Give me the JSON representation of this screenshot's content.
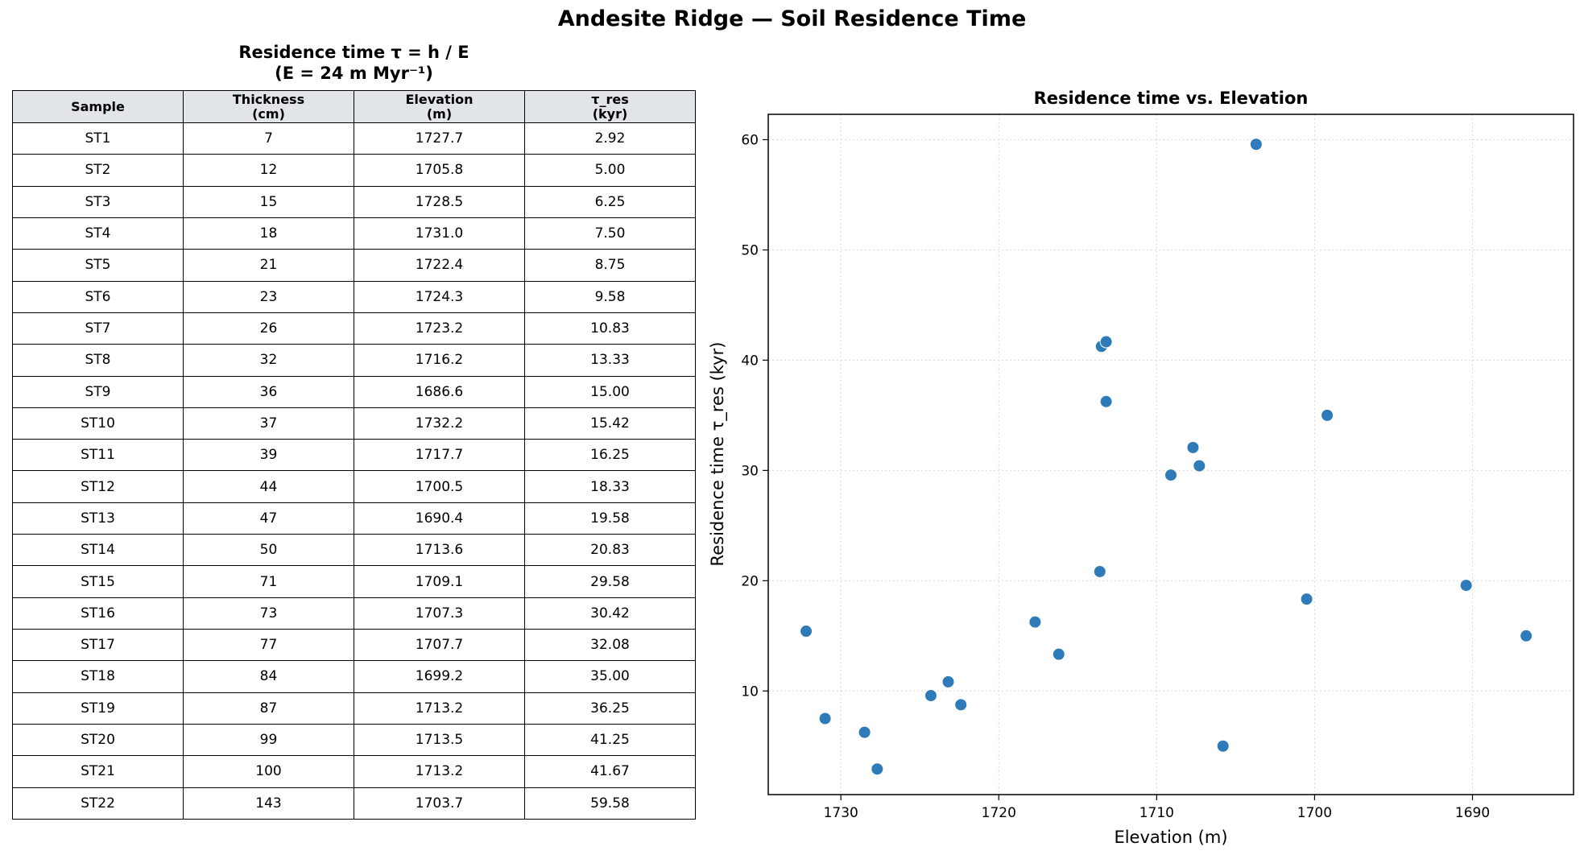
{
  "page": {
    "suptitle": "Andesite Ridge — Soil Residence Time"
  },
  "table": {
    "title_line1": "Residence time  τ = h / E",
    "title_line2": "(E = 24 m Myr⁻¹)",
    "headers": [
      {
        "line1": "Sample",
        "line2": ""
      },
      {
        "line1": "Thickness",
        "line2": "(cm)"
      },
      {
        "line1": "Elevation",
        "line2": "(m)"
      },
      {
        "line1": "τ_res",
        "line2": "(kyr)"
      }
    ],
    "rows": [
      [
        "ST1",
        "7",
        "1727.7",
        "2.92"
      ],
      [
        "ST2",
        "12",
        "1705.8",
        "5.00"
      ],
      [
        "ST3",
        "15",
        "1728.5",
        "6.25"
      ],
      [
        "ST4",
        "18",
        "1731.0",
        "7.50"
      ],
      [
        "ST5",
        "21",
        "1722.4",
        "8.75"
      ],
      [
        "ST6",
        "23",
        "1724.3",
        "9.58"
      ],
      [
        "ST7",
        "26",
        "1723.2",
        "10.83"
      ],
      [
        "ST8",
        "32",
        "1716.2",
        "13.33"
      ],
      [
        "ST9",
        "36",
        "1686.6",
        "15.00"
      ],
      [
        "ST10",
        "37",
        "1732.2",
        "15.42"
      ],
      [
        "ST11",
        "39",
        "1717.7",
        "16.25"
      ],
      [
        "ST12",
        "44",
        "1700.5",
        "18.33"
      ],
      [
        "ST13",
        "47",
        "1690.4",
        "19.58"
      ],
      [
        "ST14",
        "50",
        "1713.6",
        "20.83"
      ],
      [
        "ST15",
        "71",
        "1709.1",
        "29.58"
      ],
      [
        "ST16",
        "73",
        "1707.3",
        "30.42"
      ],
      [
        "ST17",
        "77",
        "1707.7",
        "32.08"
      ],
      [
        "ST18",
        "84",
        "1699.2",
        "35.00"
      ],
      [
        "ST19",
        "87",
        "1713.2",
        "36.25"
      ],
      [
        "ST20",
        "99",
        "1713.5",
        "41.25"
      ],
      [
        "ST21",
        "100",
        "1713.2",
        "41.67"
      ],
      [
        "ST22",
        "143",
        "1703.7",
        "59.58"
      ]
    ]
  },
  "chart_data": {
    "type": "scatter",
    "title": "Residence time vs. Elevation",
    "xlabel": "Elevation (m)",
    "ylabel": "Residence time τ_res (kyr)",
    "x_inverted": true,
    "xlim": [
      1734.6,
      1683.6
    ],
    "ylim": [
      0.6,
      62.3
    ],
    "xticks": [
      1730,
      1720,
      1710,
      1700,
      1690
    ],
    "yticks": [
      10,
      20,
      30,
      40,
      50,
      60
    ],
    "grid": true,
    "marker_color": "#2f7ab8",
    "points": [
      {
        "x": 1727.7,
        "y": 2.92
      },
      {
        "x": 1705.8,
        "y": 5.0
      },
      {
        "x": 1728.5,
        "y": 6.25
      },
      {
        "x": 1731.0,
        "y": 7.5
      },
      {
        "x": 1722.4,
        "y": 8.75
      },
      {
        "x": 1724.3,
        "y": 9.58
      },
      {
        "x": 1723.2,
        "y": 10.83
      },
      {
        "x": 1716.2,
        "y": 13.33
      },
      {
        "x": 1686.6,
        "y": 15.0
      },
      {
        "x": 1732.2,
        "y": 15.42
      },
      {
        "x": 1717.7,
        "y": 16.25
      },
      {
        "x": 1700.5,
        "y": 18.33
      },
      {
        "x": 1690.4,
        "y": 19.58
      },
      {
        "x": 1713.6,
        "y": 20.83
      },
      {
        "x": 1709.1,
        "y": 29.58
      },
      {
        "x": 1707.3,
        "y": 30.42
      },
      {
        "x": 1707.7,
        "y": 32.08
      },
      {
        "x": 1699.2,
        "y": 35.0
      },
      {
        "x": 1713.2,
        "y": 36.25
      },
      {
        "x": 1713.5,
        "y": 41.25
      },
      {
        "x": 1713.2,
        "y": 41.67
      },
      {
        "x": 1703.7,
        "y": 59.58
      }
    ]
  }
}
